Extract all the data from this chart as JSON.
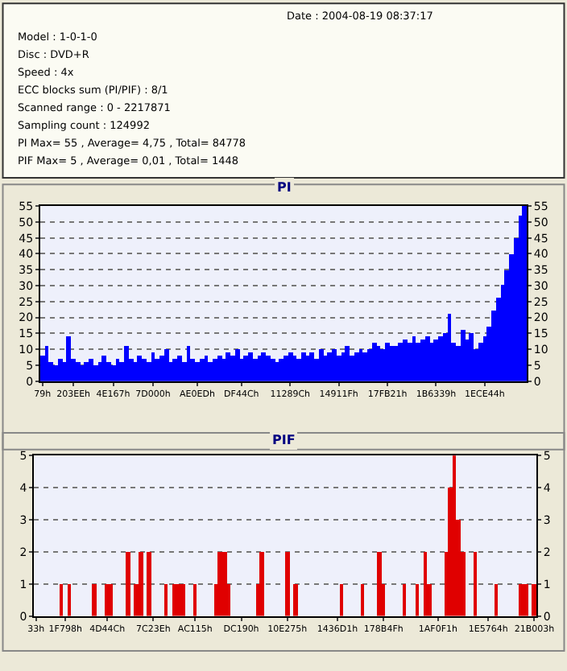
{
  "chart_data": [
    {
      "type": "other",
      "annotations": [
        "Date : 2004-08-19 08:37:17",
        "Model : 1-0-1-0",
        "Disc : DVD+R",
        "Speed : 4x",
        "ECC blocks sum (PI/PIF) : 8/1",
        "Scanned range : 0 - 2217871",
        "Sampling count : 124992",
        "PI Max= 55 , Average= 4,75 , Total= 84778",
        "PIF Max= 5 , Average= 0,01 , Total= 1448"
      ]
    },
    {
      "type": "bar",
      "title": "PI",
      "color": "#0000ff",
      "grid": "y",
      "categories": [
        "79h",
        null,
        null,
        null,
        null,
        null,
        null,
        "203EEh",
        null,
        null,
        null,
        null,
        null,
        null,
        null,
        null,
        "4E167h",
        null,
        null,
        null,
        null,
        null,
        null,
        null,
        null,
        "7D000h",
        null,
        null,
        null,
        null,
        null,
        null,
        null,
        null,
        null,
        "AE0EDh",
        null,
        null,
        null,
        null,
        null,
        null,
        null,
        null,
        null,
        "DF44Ch",
        null,
        null,
        null,
        null,
        null,
        null,
        null,
        null,
        null,
        null,
        "11289Ch",
        null,
        null,
        null,
        null,
        null,
        null,
        null,
        null,
        null,
        null,
        "14911Fh",
        null,
        null,
        null,
        null,
        null,
        null,
        null,
        null,
        null,
        null,
        "17FB21h",
        null,
        null,
        null,
        null,
        null,
        null,
        null,
        null,
        null,
        null,
        "1B6339h",
        null,
        null,
        null,
        null,
        null,
        null,
        null,
        null,
        null,
        null,
        "1ECE44h",
        null,
        null,
        null,
        null,
        null,
        null,
        null,
        null,
        null
      ],
      "values": [
        8,
        11,
        6,
        5,
        7,
        6,
        14,
        7,
        6,
        5,
        6,
        7,
        5,
        6,
        8,
        6,
        5,
        7,
        6,
        11,
        7,
        6,
        8,
        7,
        6,
        9,
        7,
        8,
        10,
        6,
        7,
        8,
        6,
        11,
        7,
        6,
        7,
        8,
        6,
        7,
        8,
        7,
        9,
        8,
        10,
        7,
        8,
        9,
        7,
        8,
        9,
        8,
        7,
        6,
        7,
        8,
        9,
        8,
        7,
        9,
        8,
        9,
        7,
        10,
        8,
        9,
        10,
        8,
        9,
        11,
        8,
        9,
        10,
        9,
        10,
        12,
        11,
        10,
        12,
        11,
        11,
        12,
        13,
        12,
        14,
        12,
        13,
        14,
        12,
        13,
        14,
        15,
        21,
        12,
        11,
        16,
        13,
        15,
        10,
        12,
        14,
        17,
        22,
        26,
        30,
        35,
        40,
        45,
        52,
        55
      ],
      "ylim": [
        0,
        55
      ],
      "yticks": [
        0,
        5,
        10,
        15,
        20,
        25,
        30,
        35,
        40,
        45,
        50,
        55
      ],
      "y2lim": [
        0,
        55
      ],
      "y2ticks": [
        0,
        5,
        10,
        15,
        20,
        25,
        30,
        35,
        40,
        45,
        50,
        55
      ]
    },
    {
      "type": "bar",
      "title": "PIF",
      "color": "#e00000",
      "grid": "y",
      "categories": [
        "33h",
        null,
        null,
        null,
        null,
        null,
        null,
        "1F798h",
        null,
        null,
        null,
        null,
        null,
        null,
        null,
        null,
        null,
        "4D44Ch",
        null,
        null,
        null,
        null,
        null,
        null,
        null,
        null,
        null,
        null,
        "7C23Eh",
        null,
        null,
        null,
        null,
        null,
        null,
        null,
        null,
        null,
        "AC115h",
        null,
        null,
        null,
        null,
        null,
        null,
        null,
        null,
        null,
        null,
        "DC190h",
        null,
        null,
        null,
        null,
        null,
        null,
        null,
        null,
        null,
        null,
        "10E275h",
        null,
        null,
        null,
        null,
        null,
        null,
        null,
        null,
        null,
        null,
        null,
        "1436D1h",
        null,
        null,
        null,
        null,
        null,
        null,
        null,
        null,
        null,
        null,
        "178B4Fh",
        null,
        null,
        null,
        null,
        null,
        null,
        null,
        null,
        null,
        null,
        null,
        null,
        "1AF0F1h",
        null,
        null,
        null,
        null,
        null,
        null,
        null,
        null,
        null,
        null,
        null,
        "1E5764h",
        null,
        null,
        null,
        null,
        null,
        null,
        null,
        null,
        null,
        null,
        "21B003h"
      ],
      "values": [
        0,
        0,
        0,
        0,
        0,
        0,
        1,
        0,
        1,
        0,
        0,
        0,
        0,
        0,
        1,
        0,
        0,
        1,
        1,
        0,
        0,
        0,
        2,
        0,
        1,
        2,
        0,
        2,
        0,
        0,
        0,
        1,
        0,
        1,
        1,
        1,
        0,
        0,
        1,
        0,
        0,
        0,
        0,
        1,
        2,
        2,
        1,
        0,
        0,
        0,
        0,
        0,
        0,
        1,
        2,
        0,
        0,
        0,
        0,
        0,
        2,
        0,
        1,
        0,
        0,
        0,
        0,
        0,
        0,
        0,
        0,
        0,
        0,
        1,
        0,
        0,
        0,
        0,
        1,
        0,
        0,
        0,
        2,
        1,
        0,
        0,
        0,
        0,
        1,
        0,
        0,
        1,
        0,
        2,
        1,
        0,
        0,
        0,
        2,
        4,
        5,
        3,
        2,
        0,
        0,
        2,
        0,
        0,
        0,
        0,
        1,
        0,
        0,
        0,
        0,
        0,
        1,
        1,
        0,
        1
      ],
      "ylim": [
        0,
        5
      ],
      "yticks": [
        0,
        1,
        2,
        3,
        4,
        5
      ],
      "y2lim": [
        0,
        5
      ],
      "y2ticks": [
        0,
        1,
        2,
        3,
        4,
        5
      ]
    }
  ]
}
